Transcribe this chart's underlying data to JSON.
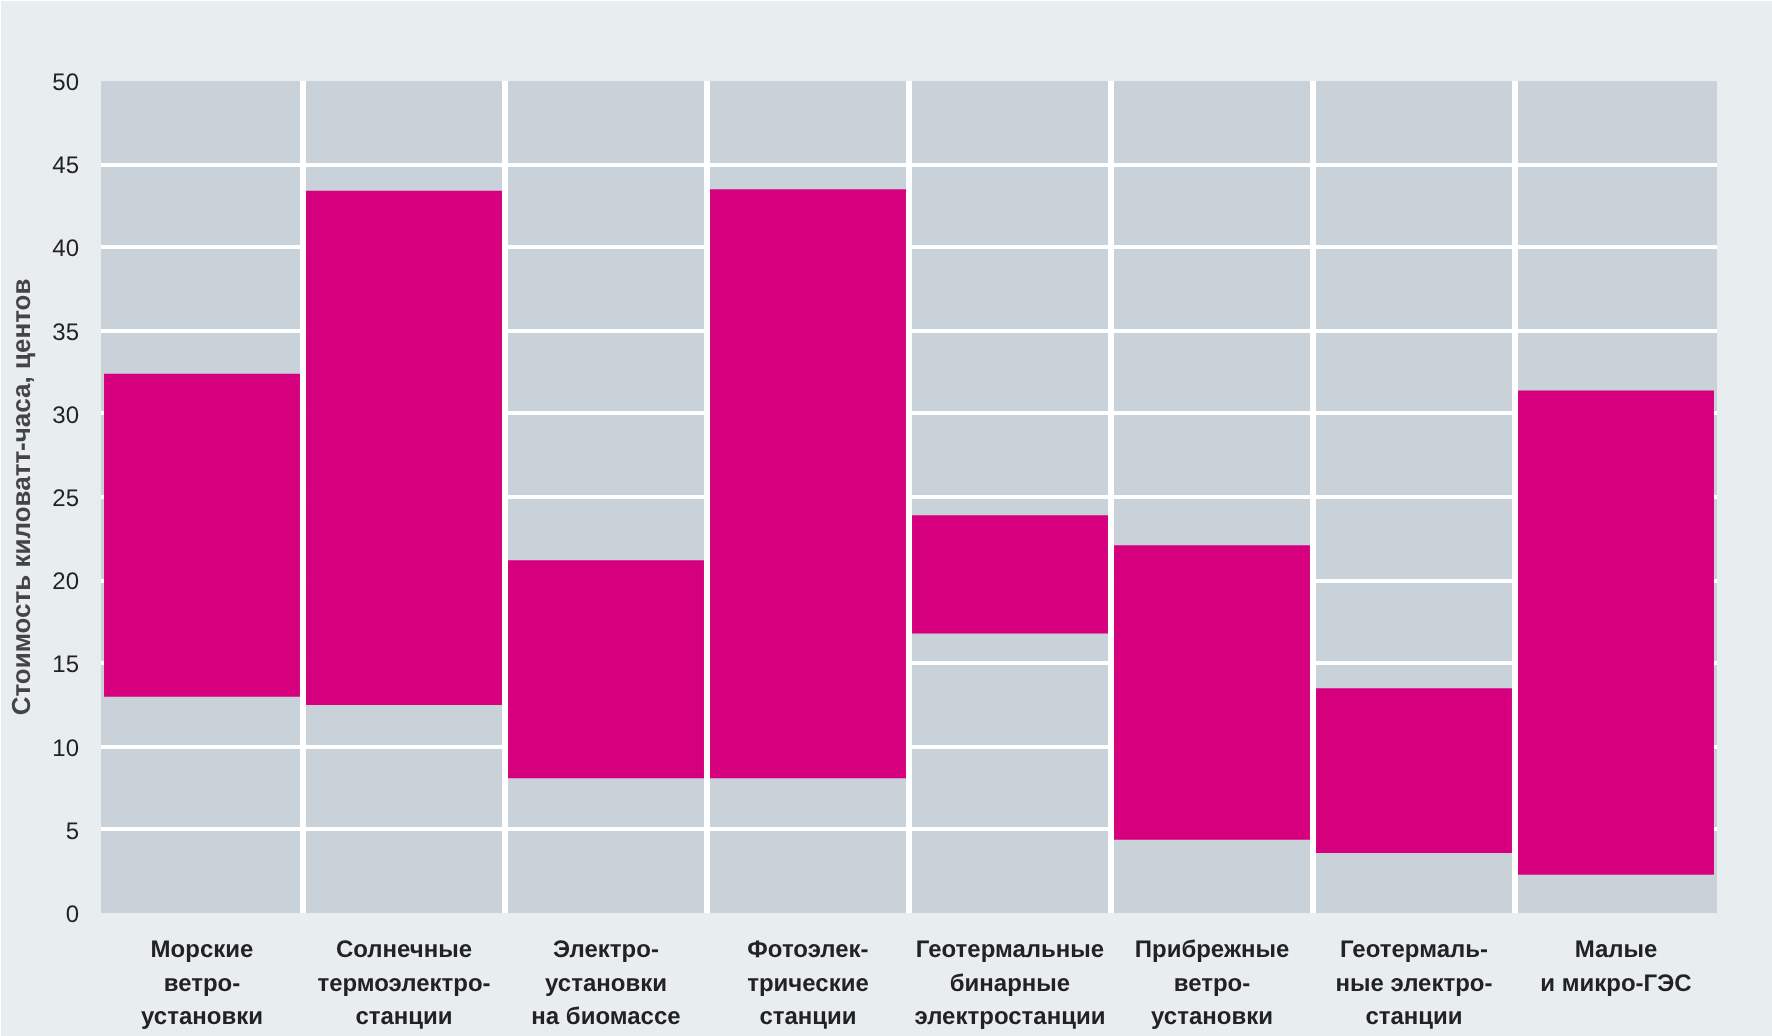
{
  "chart_data": {
    "type": "bar",
    "ylabel": "Стоимость киловатт-часа, центов",
    "categories": [
      "Морские\nветро-\nустановки",
      "Солнечные\nтермоэлектро-\nстанции",
      "Электро-\nустановки\nна биомассе",
      "Фотоэлек-\nтрические\nстанции",
      "Геотермальные\nбинарные\nэлектростанции",
      "Прибрежные\nветро-\nустановки",
      "Геотермаль-\nные электро-\nстанции",
      "Малые\nи микро-ГЭС"
    ],
    "base": [
      13.0,
      12.5,
      8.1,
      8.1,
      16.8,
      4.4,
      3.6,
      2.3
    ],
    "values": [
      19.4,
      30.9,
      13.1,
      35.4,
      7.1,
      17.7,
      9.9,
      29.1
    ],
    "color": "#d6007f",
    "ylim": [
      0,
      50
    ],
    "yticks": [
      0,
      5,
      10,
      15,
      20,
      25,
      30,
      35,
      40,
      45,
      50
    ],
    "grid": true
  }
}
